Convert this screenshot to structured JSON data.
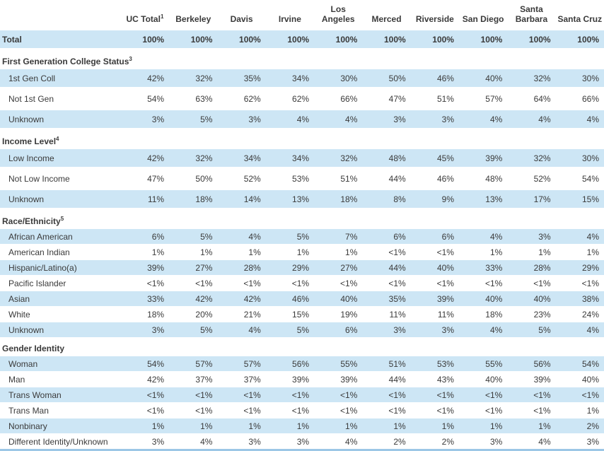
{
  "chart_data": {
    "type": "table",
    "title": "UC campus demographics table (percent of total by campus)",
    "columns": [
      {
        "label": "UC Total",
        "sup": "1"
      },
      {
        "label": "Berkeley",
        "sup": ""
      },
      {
        "label": "Davis",
        "sup": ""
      },
      {
        "label": "Irvine",
        "sup": ""
      },
      {
        "label": "Los Angeles",
        "sup": ""
      },
      {
        "label": "Merced",
        "sup": ""
      },
      {
        "label": "Riverside",
        "sup": ""
      },
      {
        "label": "San Diego",
        "sup": ""
      },
      {
        "label": "Santa Barbara",
        "sup": ""
      },
      {
        "label": "Santa Cruz",
        "sup": ""
      }
    ],
    "total_row": {
      "label": "Total",
      "values": [
        "100%",
        "100%",
        "100%",
        "100%",
        "100%",
        "100%",
        "100%",
        "100%",
        "100%",
        "100%"
      ]
    },
    "sections": [
      {
        "title": "First Generation College Status",
        "sup": "3",
        "row_size": "large",
        "rows": [
          {
            "label": "1st Gen Coll",
            "values": [
              "42%",
              "32%",
              "35%",
              "34%",
              "30%",
              "50%",
              "46%",
              "40%",
              "32%",
              "30%"
            ]
          },
          {
            "label": "Not 1st Gen",
            "values": [
              "54%",
              "63%",
              "62%",
              "62%",
              "66%",
              "47%",
              "51%",
              "57%",
              "64%",
              "66%"
            ]
          },
          {
            "label": "Unknown",
            "values": [
              "3%",
              "5%",
              "3%",
              "4%",
              "4%",
              "3%",
              "3%",
              "4%",
              "4%",
              "4%"
            ]
          }
        ]
      },
      {
        "title": "Income Level",
        "sup": "4",
        "row_size": "large",
        "rows": [
          {
            "label": "Low Income",
            "values": [
              "42%",
              "32%",
              "34%",
              "34%",
              "32%",
              "48%",
              "45%",
              "39%",
              "32%",
              "30%"
            ]
          },
          {
            "label": "Not Low Income",
            "values": [
              "47%",
              "50%",
              "52%",
              "53%",
              "51%",
              "44%",
              "46%",
              "48%",
              "52%",
              "54%"
            ]
          },
          {
            "label": "Unknown",
            "values": [
              "11%",
              "18%",
              "14%",
              "13%",
              "18%",
              "8%",
              "9%",
              "13%",
              "17%",
              "15%"
            ]
          }
        ]
      },
      {
        "title": "Race/Ethnicity",
        "sup": "5",
        "row_size": "small",
        "rows": [
          {
            "label": "African American",
            "values": [
              "6%",
              "5%",
              "4%",
              "5%",
              "7%",
              "6%",
              "6%",
              "4%",
              "3%",
              "4%"
            ]
          },
          {
            "label": "American Indian",
            "values": [
              "1%",
              "1%",
              "1%",
              "1%",
              "1%",
              "<1%",
              "<1%",
              "1%",
              "1%",
              "1%"
            ]
          },
          {
            "label": "Hispanic/Latino(a)",
            "values": [
              "39%",
              "27%",
              "28%",
              "29%",
              "27%",
              "44%",
              "40%",
              "33%",
              "28%",
              "29%"
            ]
          },
          {
            "label": "Pacific Islander",
            "values": [
              "<1%",
              "<1%",
              "<1%",
              "<1%",
              "<1%",
              "<1%",
              "<1%",
              "<1%",
              "<1%",
              "<1%"
            ]
          },
          {
            "label": "Asian",
            "values": [
              "33%",
              "42%",
              "42%",
              "46%",
              "40%",
              "35%",
              "39%",
              "40%",
              "40%",
              "38%"
            ]
          },
          {
            "label": "White",
            "values": [
              "18%",
              "20%",
              "21%",
              "15%",
              "19%",
              "11%",
              "11%",
              "18%",
              "23%",
              "24%"
            ]
          },
          {
            "label": "Unknown",
            "values": [
              "3%",
              "5%",
              "4%",
              "5%",
              "6%",
              "3%",
              "3%",
              "4%",
              "5%",
              "4%"
            ]
          }
        ]
      },
      {
        "title": "Gender Identity",
        "sup": "",
        "row_size": "small",
        "rows": [
          {
            "label": "Woman",
            "values": [
              "54%",
              "57%",
              "57%",
              "56%",
              "55%",
              "51%",
              "53%",
              "55%",
              "56%",
              "54%"
            ]
          },
          {
            "label": "Man",
            "values": [
              "42%",
              "37%",
              "37%",
              "39%",
              "39%",
              "44%",
              "43%",
              "40%",
              "39%",
              "40%"
            ]
          },
          {
            "label": "Trans Woman",
            "values": [
              "<1%",
              "<1%",
              "<1%",
              "<1%",
              "<1%",
              "<1%",
              "<1%",
              "<1%",
              "<1%",
              "<1%"
            ]
          },
          {
            "label": "Trans Man",
            "values": [
              "<1%",
              "<1%",
              "<1%",
              "<1%",
              "<1%",
              "<1%",
              "<1%",
              "<1%",
              "<1%",
              "1%"
            ]
          },
          {
            "label": "Nonbinary",
            "values": [
              "1%",
              "1%",
              "1%",
              "1%",
              "1%",
              "1%",
              "1%",
              "1%",
              "1%",
              "2%"
            ]
          },
          {
            "label": "Different Identity/Unknown",
            "values": [
              "3%",
              "4%",
              "3%",
              "3%",
              "4%",
              "2%",
              "2%",
              "3%",
              "4%",
              "3%"
            ]
          }
        ]
      }
    ],
    "colors": {
      "row_highlight": "#cde6f5",
      "text": "#3a3a3a",
      "bottom_border": "#9cc7e6",
      "background": "#ffffff"
    }
  }
}
